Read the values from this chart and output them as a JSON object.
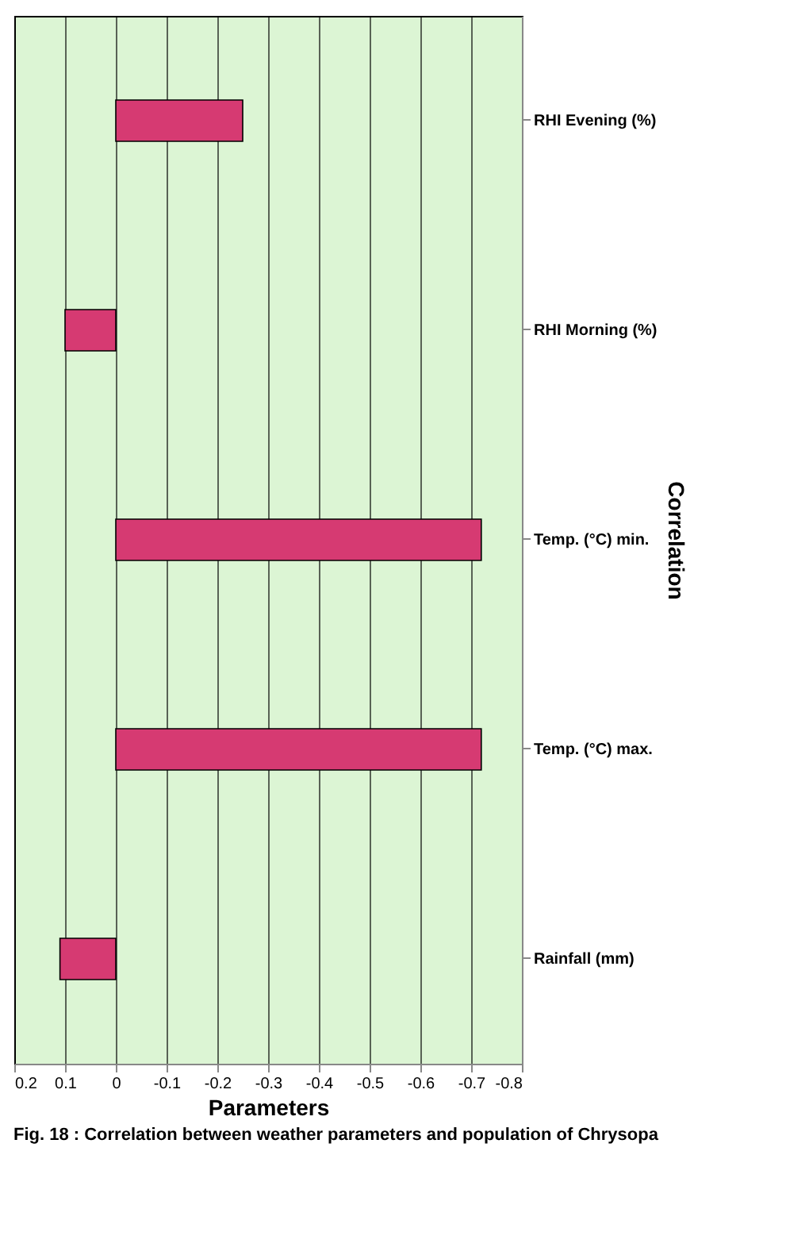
{
  "chart_data": {
    "type": "bar",
    "orientation": "horizontal",
    "title": "Fig. 18 : Correlation between weather parameters and population of Chrysopa",
    "xlabel": "Parameters",
    "ylabel": "Correlation",
    "categories": [
      "RHI Evening (%)",
      "RHI Morning (%)",
      "Temp. (°C) min.",
      "Temp. (°C) max.",
      "Rainfall (mm)"
    ],
    "values": [
      -0.25,
      0.1,
      -0.72,
      -0.72,
      0.11
    ],
    "color": "#d63a72",
    "xlim": [
      0.2,
      -0.8
    ],
    "xticks": [
      0.2,
      0.1,
      0,
      -0.1,
      -0.2,
      -0.3,
      -0.4,
      -0.5,
      -0.6,
      -0.7,
      -0.8
    ],
    "grid": "x"
  }
}
